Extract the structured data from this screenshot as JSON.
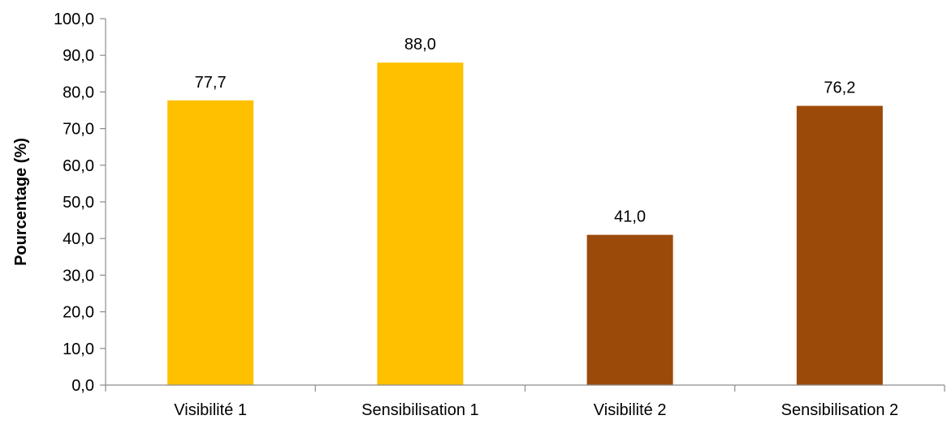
{
  "chart_data": {
    "type": "bar",
    "title": "",
    "xlabel": "",
    "ylabel": "Pourcentage (%)",
    "ylim": [
      0,
      100
    ],
    "yticks": [
      "0,0",
      "10,0",
      "20,0",
      "30,0",
      "40,0",
      "50,0",
      "60,0",
      "70,0",
      "80,0",
      "90,0",
      "100,0"
    ],
    "categories": [
      "Visibilité 1",
      "Sensibilisation 1",
      "Visibilité 2",
      "Sensibilisation 2"
    ],
    "values": [
      77.7,
      88.0,
      41.0,
      76.2
    ],
    "data_labels": [
      "77,7",
      "88,0",
      "41,0",
      "76,2"
    ],
    "bar_colors": [
      "#FFC000",
      "#FFC000",
      "#9C4A0A",
      "#9C4A0A"
    ],
    "grid": false,
    "legend": "none"
  }
}
